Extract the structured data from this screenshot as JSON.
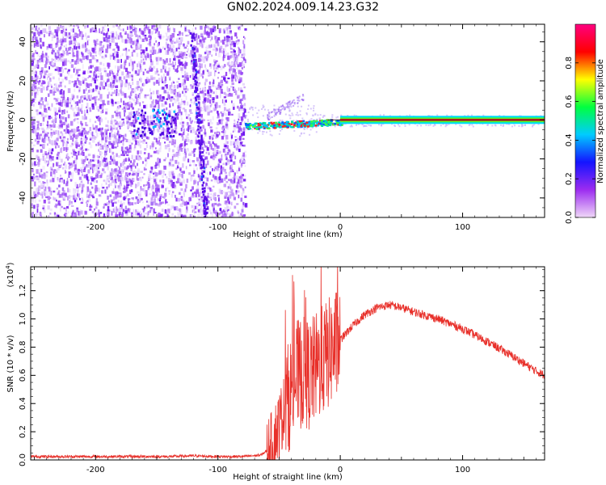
{
  "title": "GN02.2024.009.14.23.G32",
  "colors": {
    "snr_line": "#e8302a",
    "spectrogram_base": "#7a1ff0",
    "spectrogram_light": "#d8c4fb",
    "colorbar_stops": [
      "#f0d8f8",
      "#9c2cf0",
      "#1414ff",
      "#00ccff",
      "#00ff40",
      "#ffff00",
      "#ff0000",
      "#ff0080"
    ]
  },
  "chart_data": [
    {
      "type": "heatmap",
      "xlabel": "Height of straight line (km)",
      "ylabel": "Frequency (Hz)",
      "xlim": [
        -253,
        167
      ],
      "ylim": [
        -50,
        49
      ],
      "x_ticks": [
        -200,
        -100,
        0,
        100
      ],
      "x_tick_labels": [
        "-200",
        "-100",
        "0",
        "100"
      ],
      "y_ticks": [
        -40,
        -20,
        0,
        20,
        40
      ],
      "y_tick_labels": [
        "-40",
        "-20",
        "0",
        "20",
        "40"
      ],
      "noise_region_x": [
        -253,
        -78
      ],
      "tone_region_x": [
        -78,
        167
      ],
      "tone_frequency_hz": 0,
      "colorbar": {
        "label": "Normalized spectral amplitude",
        "range": [
          0,
          1
        ],
        "ticks": [
          0.0,
          0.2,
          0.4,
          0.6,
          0.8
        ],
        "tick_labels": [
          "0.0",
          "0.2",
          "0.4",
          "0.6",
          "0.8"
        ]
      }
    },
    {
      "type": "line",
      "xlabel": "Height of straight line (km)",
      "ylabel": "SNR (10 * v/v)",
      "y_multiplier": "(x10",
      "y_multiplier_exp": "4",
      "y_multiplier_close": ")",
      "xlim": [
        -253,
        167
      ],
      "ylim": [
        0,
        1.37
      ],
      "x_ticks": [
        -200,
        -100,
        0,
        100
      ],
      "x_tick_labels": [
        "-200",
        "-100",
        "0",
        "100"
      ],
      "y_ticks": [
        0.0,
        0.2,
        0.4,
        0.6,
        0.8,
        1.0,
        1.2
      ],
      "y_tick_labels": [
        "0.0",
        "0.2",
        "0.4",
        "0.6",
        "0.8",
        "1.0",
        "1.2"
      ],
      "x": [
        -253,
        -220,
        -180,
        -140,
        -120,
        -100,
        -80,
        -65,
        -57,
        -50,
        -45,
        -40,
        -35,
        -30,
        -25,
        -20,
        -15,
        -10,
        -5,
        0,
        10,
        20,
        30,
        40,
        50,
        60,
        80,
        100,
        120,
        140,
        160,
        167
      ],
      "y": [
        0.02,
        0.02,
        0.02,
        0.02,
        0.025,
        0.02,
        0.02,
        0.03,
        0.08,
        0.25,
        0.38,
        0.5,
        0.6,
        0.62,
        0.6,
        0.65,
        0.7,
        0.75,
        0.8,
        0.85,
        0.95,
        1.03,
        1.08,
        1.1,
        1.08,
        1.05,
        1.0,
        0.93,
        0.84,
        0.74,
        0.63,
        0.6
      ]
    }
  ]
}
